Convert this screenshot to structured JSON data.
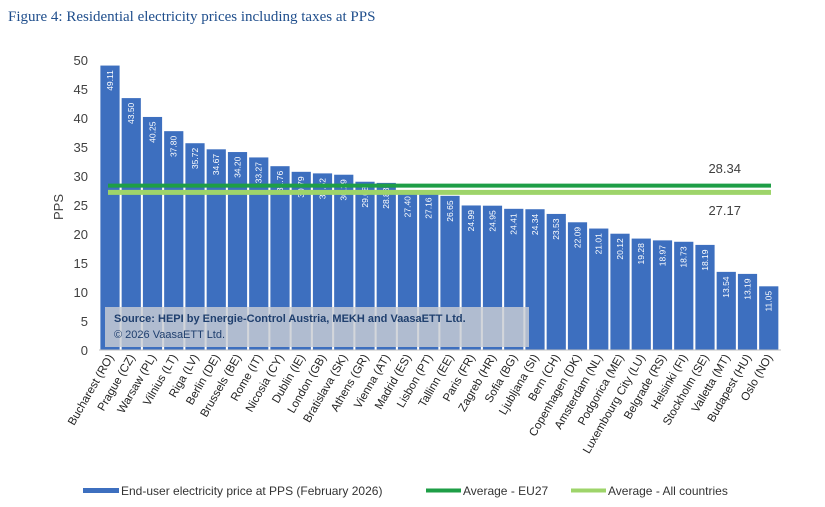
{
  "figure_title": "Figure 4: Residential electricity prices including taxes at PPS",
  "source_note": {
    "line1": "Source: HEPI by Energie-Control Austria, MEKH and VaasaETT Ltd.",
    "line2": "© 2026 VaasaETT Ltd."
  },
  "colors": {
    "bar": "#3d6fbf",
    "avg_eu27": "#1e9e46",
    "avg_all": "#9ed46a"
  },
  "chart_data": {
    "type": "bar",
    "title": "Figure 4: Residential electricity prices including taxes at PPS",
    "xlabel": "",
    "ylabel": "PPS",
    "ylim": [
      0,
      50
    ],
    "yticks": [
      0,
      5,
      10,
      15,
      20,
      25,
      30,
      35,
      40,
      45,
      50
    ],
    "grid": false,
    "legend_position": "bottom",
    "categories": [
      "Bucharest (RO)",
      "Prague (CZ)",
      "Warsaw (PL)",
      "Vilnius (LT)",
      "Riga (LV)",
      "Berlin (DE)",
      "Brussels (BE)",
      "Rome (IT)",
      "Nicosia (CY)",
      "Dublin (IE)",
      "London (GB)",
      "Bratislava (SK)",
      "Athens (GR)",
      "Vienna (AT)",
      "Madrid (ES)",
      "Lisbon (PT)",
      "Tallinn (EE)",
      "Paris (FR)",
      "Zagreb (HR)",
      "Sofia (BG)",
      "Ljubljana (SI)",
      "Bern (CH)",
      "Copenhagen (DK)",
      "Amsterdam (NL)",
      "Podgorica (ME)",
      "Luxembourg City (LU)",
      "Belgrade (RS)",
      "Helsinki (FI)",
      "Stockholm (SE)",
      "Valletta (MT)",
      "Budapest (HU)",
      "Oslo (NO)"
    ],
    "series": [
      {
        "name": "End-user electricity price at PPS (February 2026)",
        "type": "bar",
        "values": [
          49.11,
          43.5,
          40.25,
          37.8,
          35.72,
          34.67,
          34.2,
          33.27,
          31.76,
          30.79,
          30.52,
          30.29,
          29.08,
          28.88,
          27.4,
          27.16,
          26.65,
          24.99,
          24.95,
          24.41,
          24.34,
          23.53,
          22.09,
          21.01,
          20.12,
          19.28,
          18.97,
          18.73,
          18.19,
          13.54,
          13.19,
          11.05
        ],
        "value_labels": [
          "49.11",
          "43.50",
          "40.25",
          "37.80",
          "35.72",
          "34.67",
          "34.20",
          "33.27",
          "31.76",
          "30.79",
          "30.52",
          "30.29",
          "29.08",
          "28.88",
          "27.40",
          "27.16",
          "26.65",
          "24.99",
          "24.95",
          "24.41",
          "24.34",
          "23.53",
          "22.09",
          "21.01",
          "20.12",
          "19.28",
          "18.97",
          "18.73",
          "18.19",
          "13.54",
          "13.19",
          "11.05"
        ]
      },
      {
        "name": "Average - EU27",
        "type": "line",
        "value": 28.34,
        "value_label": "28.34"
      },
      {
        "name": "Average - All countries",
        "type": "line",
        "value": 27.17,
        "value_label": "27.17"
      }
    ]
  }
}
